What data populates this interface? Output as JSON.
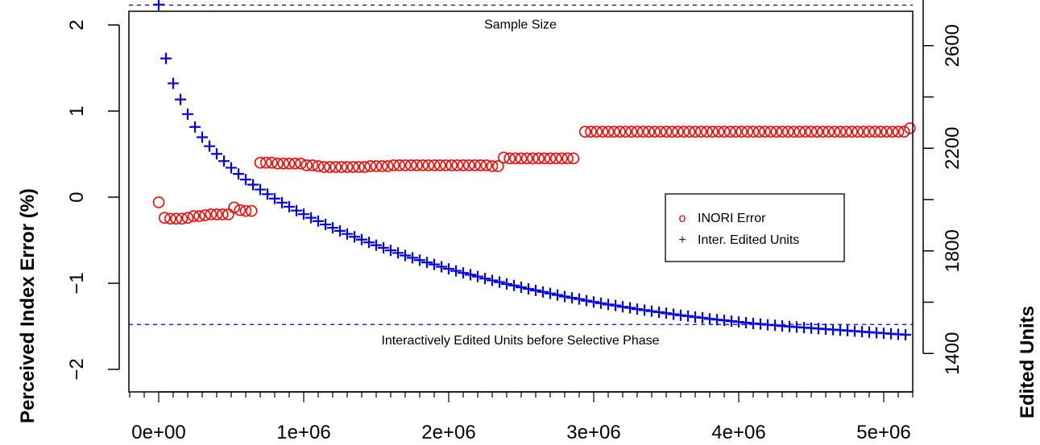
{
  "chart_data": {
    "type": "scatter",
    "xlabel": "",
    "ylabel_left": "Perceived Index Error (%)",
    "ylabel_right": "Edited Units",
    "x_ticks": [
      0,
      1000000,
      2000000,
      3000000,
      4000000,
      5000000
    ],
    "x_tick_labels": [
      "0e+00",
      "1e+06",
      "2e+06",
      "3e+06",
      "4e+06",
      "5e+06"
    ],
    "y_left_ticks": [
      -2,
      -1,
      0,
      1,
      2
    ],
    "y_left_tick_labels": [
      "−2",
      "−1",
      "0",
      "1",
      "2"
    ],
    "y_right_ticks": [
      1400,
      1800,
      2200,
      2600
    ],
    "y_right_tick_labels": [
      "1400",
      "1800",
      "2200",
      "2600"
    ],
    "y_right_minor_ticks": [
      1400,
      1600,
      1800,
      2000,
      2200,
      2400,
      2600,
      2800
    ],
    "xlim": [
      -200000,
      5200000
    ],
    "ylim_left": [
      -2.2,
      2.1
    ],
    "ylim_right": [
      1363,
      2806
    ],
    "reference_lines": [
      {
        "axis": "right",
        "value": 2758,
        "label": "Sample Size"
      },
      {
        "axis": "right",
        "value": 1513,
        "label": "Interactively Edited Units before Selective Phase"
      }
    ],
    "legend": {
      "position": "right",
      "entries": [
        {
          "label": "INORI Error",
          "symbol": "o",
          "color": "#ff0000"
        },
        {
          "label": "Inter. Edited Units",
          "symbol": "+",
          "color": "#0000ff"
        }
      ]
    },
    "series": [
      {
        "name": "INORI Error",
        "axis": "left",
        "color": "#ff0000",
        "x": [
          0,
          40000,
          80000,
          120000,
          160000,
          200000,
          240000,
          280000,
          320000,
          360000,
          400000,
          440000,
          480000,
          520000,
          560000,
          600000,
          640000,
          700000,
          740000,
          780000,
          820000,
          860000,
          900000,
          940000,
          980000,
          1020000,
          1060000,
          1100000,
          1140000,
          1180000,
          1220000,
          1260000,
          1300000,
          1340000,
          1380000,
          1420000,
          1460000,
          1500000,
          1540000,
          1580000,
          1620000,
          1660000,
          1700000,
          1740000,
          1780000,
          1820000,
          1860000,
          1900000,
          1940000,
          1980000,
          2020000,
          2060000,
          2100000,
          2140000,
          2180000,
          2220000,
          2260000,
          2300000,
          2340000,
          2380000,
          2420000,
          2460000,
          2500000,
          2540000,
          2580000,
          2620000,
          2660000,
          2700000,
          2740000,
          2780000,
          2820000,
          2860000,
          2940000,
          2980000,
          3020000,
          3060000,
          3100000,
          3140000,
          3180000,
          3220000,
          3260000,
          3300000,
          3340000,
          3380000,
          3420000,
          3460000,
          3500000,
          3540000,
          3580000,
          3620000,
          3660000,
          3700000,
          3740000,
          3780000,
          3820000,
          3860000,
          3900000,
          3940000,
          3980000,
          4020000,
          4060000,
          4100000,
          4140000,
          4180000,
          4220000,
          4260000,
          4300000,
          4340000,
          4380000,
          4420000,
          4460000,
          4500000,
          4540000,
          4580000,
          4620000,
          4660000,
          4700000,
          4740000,
          4780000,
          4820000,
          4860000,
          4900000,
          4940000,
          4980000,
          5020000,
          5060000,
          5100000,
          5140000,
          5180000
        ],
        "y": [
          -0.06,
          -0.24,
          -0.25,
          -0.25,
          -0.25,
          -0.24,
          -0.22,
          -0.22,
          -0.21,
          -0.2,
          -0.2,
          -0.2,
          -0.2,
          -0.12,
          -0.15,
          -0.16,
          -0.16,
          0.4,
          0.4,
          0.4,
          0.39,
          0.39,
          0.39,
          0.39,
          0.39,
          0.37,
          0.37,
          0.36,
          0.35,
          0.35,
          0.35,
          0.35,
          0.35,
          0.35,
          0.35,
          0.35,
          0.36,
          0.36,
          0.36,
          0.36,
          0.37,
          0.37,
          0.37,
          0.37,
          0.37,
          0.37,
          0.37,
          0.37,
          0.37,
          0.37,
          0.37,
          0.37,
          0.37,
          0.37,
          0.37,
          0.37,
          0.37,
          0.36,
          0.36,
          0.46,
          0.45,
          0.45,
          0.45,
          0.45,
          0.45,
          0.45,
          0.45,
          0.45,
          0.45,
          0.45,
          0.45,
          0.45,
          0.76,
          0.76,
          0.76,
          0.76,
          0.76,
          0.76,
          0.76,
          0.76,
          0.76,
          0.76,
          0.76,
          0.76,
          0.76,
          0.76,
          0.76,
          0.76,
          0.76,
          0.76,
          0.76,
          0.76,
          0.76,
          0.76,
          0.76,
          0.76,
          0.76,
          0.76,
          0.76,
          0.76,
          0.76,
          0.76,
          0.76,
          0.76,
          0.76,
          0.76,
          0.76,
          0.76,
          0.76,
          0.76,
          0.76,
          0.76,
          0.76,
          0.76,
          0.76,
          0.76,
          0.76,
          0.76,
          0.76,
          0.76,
          0.76,
          0.76,
          0.76,
          0.76,
          0.76,
          0.76,
          0.76,
          0.76,
          0.8
        ]
      },
      {
        "name": "Inter. Edited Units",
        "axis": "right",
        "color": "#0000ff",
        "x": [
          0,
          50000,
          100000,
          150000,
          200000,
          250000,
          300000,
          350000,
          400000,
          450000,
          500000,
          550000,
          600000,
          650000,
          700000,
          750000,
          800000,
          850000,
          900000,
          950000,
          1000000,
          1050000,
          1100000,
          1150000,
          1200000,
          1250000,
          1300000,
          1350000,
          1400000,
          1450000,
          1500000,
          1550000,
          1600000,
          1650000,
          1700000,
          1750000,
          1800000,
          1850000,
          1900000,
          1950000,
          2000000,
          2050000,
          2100000,
          2150000,
          2200000,
          2250000,
          2300000,
          2350000,
          2400000,
          2450000,
          2500000,
          2550000,
          2600000,
          2650000,
          2700000,
          2750000,
          2800000,
          2850000,
          2900000,
          2950000,
          3000000,
          3050000,
          3100000,
          3150000,
          3200000,
          3250000,
          3300000,
          3350000,
          3400000,
          3450000,
          3500000,
          3550000,
          3600000,
          3650000,
          3700000,
          3750000,
          3800000,
          3850000,
          3900000,
          3950000,
          4000000,
          4050000,
          4100000,
          4150000,
          4200000,
          4250000,
          4300000,
          4350000,
          4400000,
          4450000,
          4500000,
          4550000,
          4600000,
          4650000,
          4700000,
          4750000,
          4800000,
          4850000,
          4900000,
          4950000,
          5000000,
          5050000,
          5100000,
          5150000
        ],
        "y": [
          2760,
          2550,
          2453,
          2390,
          2333,
          2283,
          2243,
          2208,
          2178,
          2150,
          2124,
          2100,
          2078,
          2058,
          2039,
          2021,
          2004,
          1988,
          1972,
          1957,
          1943,
          1929,
          1916,
          1903,
          1890,
          1878,
          1866,
          1855,
          1844,
          1833,
          1822,
          1812,
          1802,
          1792,
          1782,
          1773,
          1764,
          1755,
          1747,
          1738,
          1730,
          1722,
          1714,
          1707,
          1700,
          1692,
          1685,
          1678,
          1671,
          1665,
          1658,
          1652,
          1646,
          1640,
          1634,
          1628,
          1622,
          1617,
          1612,
          1606,
          1601,
          1596,
          1591,
          1587,
          1582,
          1578,
          1573,
          1569,
          1565,
          1561,
          1557,
          1553,
          1549,
          1546,
          1542,
          1539,
          1535,
          1532,
          1529,
          1526,
          1523,
          1520,
          1517,
          1515,
          1512,
          1510,
          1507,
          1505,
          1503,
          1501,
          1499,
          1497,
          1495,
          1493,
          1491,
          1489,
          1487,
          1485,
          1483,
          1481,
          1479,
          1477,
          1475,
          1473
        ]
      }
    ]
  }
}
